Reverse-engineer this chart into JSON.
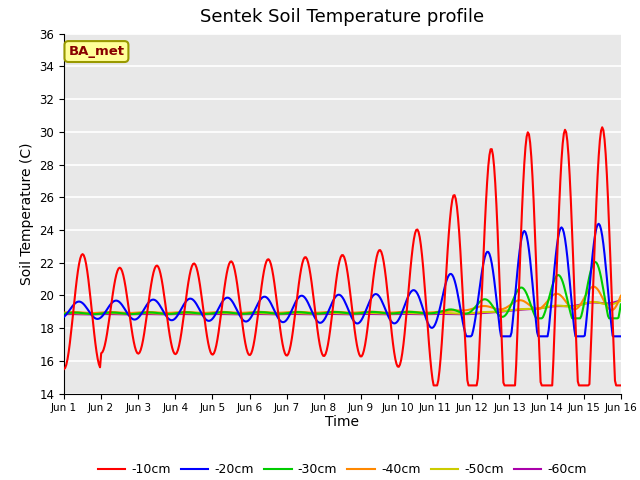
{
  "title": "Sentek Soil Temperature profile",
  "ylabel": "Soil Temperature (C)",
  "xlabel": "Time",
  "ylim": [
    14,
    36
  ],
  "xlim": [
    0,
    15
  ],
  "xtick_labels": [
    "Jun 1",
    "Jun 2",
    "Jun 3",
    "Jun 4",
    "Jun 5",
    "Jun 6",
    "Jun 7",
    "Jun 8",
    "Jun 9",
    "Jun 10",
    "Jun 11",
    "Jun 12",
    "Jun 13",
    "Jun 14",
    "Jun 15",
    "Jun 16"
  ],
  "xtick_positions": [
    0,
    1,
    2,
    3,
    4,
    5,
    6,
    7,
    8,
    9,
    10,
    11,
    12,
    13,
    14,
    15
  ],
  "ytick_positions": [
    14,
    16,
    18,
    20,
    22,
    24,
    26,
    28,
    30,
    32,
    34,
    36
  ],
  "annotation_text": "BA_met",
  "colors": {
    "-10cm": "#ff0000",
    "-20cm": "#0000ff",
    "-30cm": "#00cc00",
    "-40cm": "#ff8800",
    "-50cm": "#cccc00",
    "-60cm": "#aa00aa"
  },
  "line_width": 1.5,
  "plot_bg_color": "#e8e8e8",
  "title_fontsize": 13,
  "axis_label_fontsize": 10,
  "legend_fontsize": 9,
  "annotation_bbox_facecolor": "#ffff99",
  "annotation_bbox_edgecolor": "#999900",
  "annotation_text_color": "#880000"
}
